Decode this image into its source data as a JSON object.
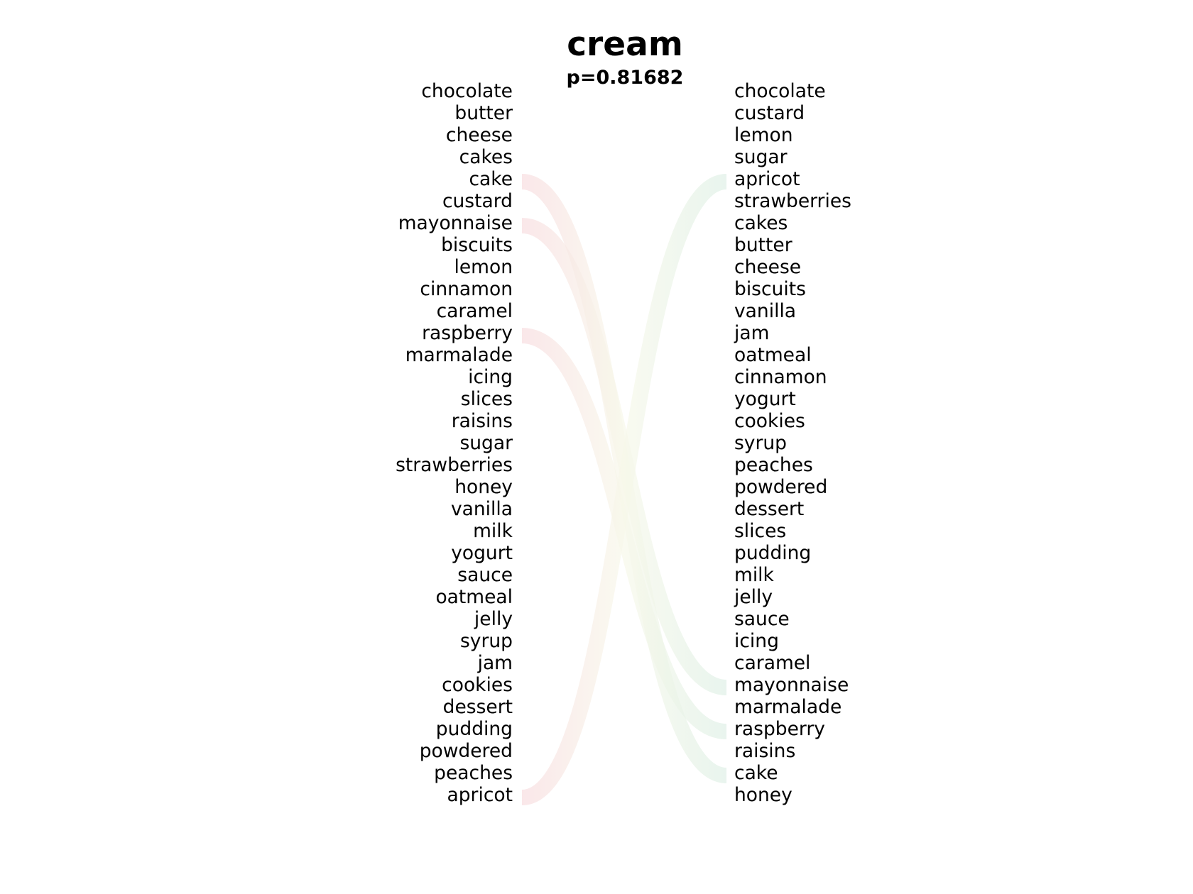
{
  "chart_data": {
    "type": "rank-comparison",
    "title": "cream",
    "subtitle": "p=0.81682",
    "left_ranking": [
      "chocolate",
      "butter",
      "cheese",
      "cakes",
      "cake",
      "custard",
      "mayonnaise",
      "biscuits",
      "lemon",
      "cinnamon",
      "caramel",
      "raspberry",
      "marmalade",
      "icing",
      "slices",
      "raisins",
      "sugar",
      "strawberries",
      "honey",
      "vanilla",
      "milk",
      "yogurt",
      "sauce",
      "oatmeal",
      "jelly",
      "syrup",
      "jam",
      "cookies",
      "dessert",
      "pudding",
      "powdered",
      "peaches",
      "apricot"
    ],
    "right_ranking": [
      "chocolate",
      "custard",
      "lemon",
      "sugar",
      "apricot",
      "strawberries",
      "cakes",
      "butter",
      "cheese",
      "biscuits",
      "vanilla",
      "jam",
      "oatmeal",
      "cinnamon",
      "yogurt",
      "cookies",
      "syrup",
      "peaches",
      "powdered",
      "dessert",
      "slices",
      "pudding",
      "milk",
      "jelly",
      "sauce",
      "icing",
      "caramel",
      "mayonnaise",
      "marmalade",
      "raspberry",
      "raisins",
      "cake",
      "honey"
    ],
    "highlighted_links": [
      {
        "word": "cake",
        "from_rank": 5,
        "to_rank": 32
      },
      {
        "word": "mayonnaise",
        "from_rank": 7,
        "to_rank": 28
      },
      {
        "word": "raspberry",
        "from_rank": 12,
        "to_rank": 30
      },
      {
        "word": "apricot",
        "from_rank": 33,
        "to_rank": 5
      }
    ],
    "colors": {
      "text": "#000000",
      "link_start": "#f8dde0",
      "link_end": "#dff0e6"
    }
  }
}
